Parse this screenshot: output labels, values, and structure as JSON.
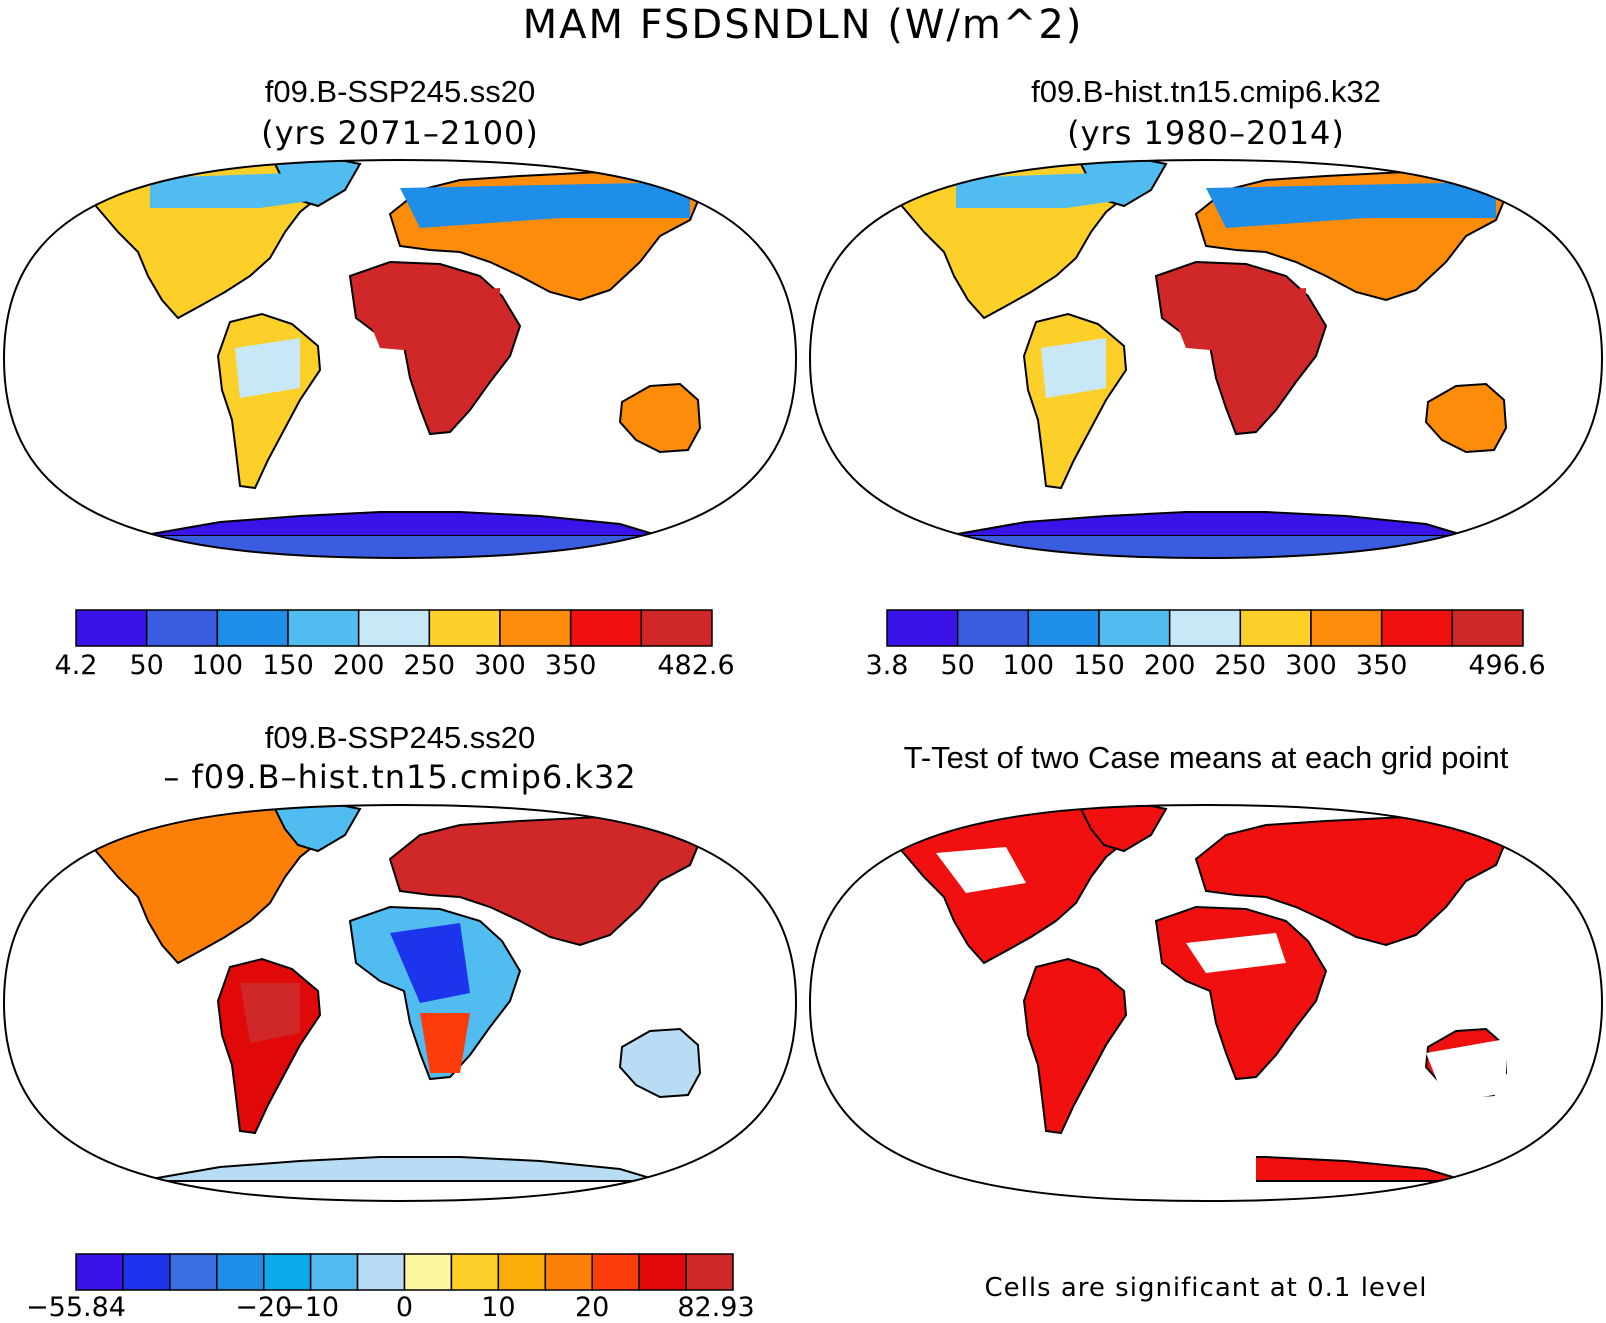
{
  "figure": {
    "title": "MAM FSDSNDLN (W/m^2)"
  },
  "panels": [
    {
      "id": "top-left",
      "title": "f09.B-SSP245.ss20",
      "subtitle": "(yrs 2071–2100)",
      "colorbar": {
        "labels": [
          "4.2",
          "50",
          "100",
          "150",
          "200",
          "250",
          "300",
          "350",
          "482.6"
        ],
        "colors": [
          "#3a13e8",
          "#3a5ce0",
          "#1e8ee8",
          "#50bcf0",
          "#c8e8f8",
          "#fcd028",
          "#fc8c0a",
          "#f01010",
          "#d02828"
        ]
      }
    },
    {
      "id": "top-right",
      "title": "f09.B-hist.tn15.cmip6.k32",
      "subtitle": "(yrs 1980–2014)",
      "colorbar": {
        "labels": [
          "3.8",
          "50",
          "100",
          "150",
          "200",
          "250",
          "300",
          "350",
          "496.6"
        ],
        "colors": [
          "#3a13e8",
          "#3a5ce0",
          "#1e8ee8",
          "#50bcf0",
          "#c8e8f8",
          "#fcd028",
          "#fc8c0a",
          "#f01010",
          "#d02828"
        ]
      }
    },
    {
      "id": "bottom-left",
      "title": "f09.B-SSP245.ss20",
      "subtitle": "– f09.B–hist.tn15.cmip6.k32",
      "colorbar": {
        "labels": [
          "−55.84",
          "−20",
          "−10",
          "0",
          "10",
          "20",
          "82.93"
        ],
        "colors": [
          "#3a13e8",
          "#1c34ec",
          "#3a6ee0",
          "#1e8ee8",
          "#0aacee",
          "#50bcf0",
          "#b8dcf4",
          "#fcf8a0",
          "#fcd028",
          "#fcac08",
          "#fc8008",
          "#fc3c0a",
          "#e00808",
          "#d02828"
        ]
      }
    },
    {
      "id": "bottom-right",
      "title": "T-Test of two Case means at each grid point",
      "note": "Cells are significant at 0.1 level",
      "significance_color": "#f01010"
    }
  ]
}
